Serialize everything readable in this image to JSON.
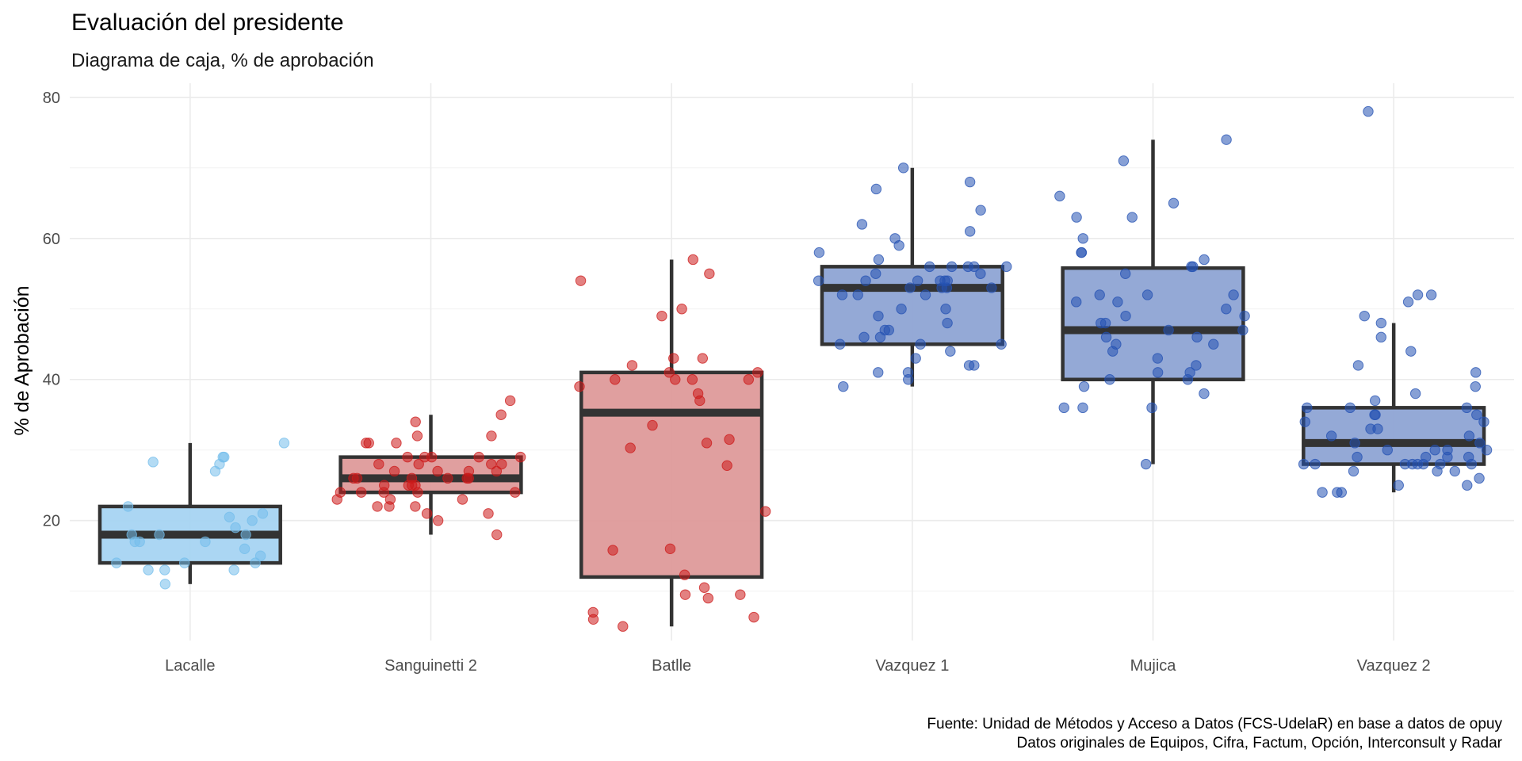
{
  "chart_data": {
    "type": "box",
    "title": "Evaluación del presidente",
    "subtitle": "Diagrama de caja, % de aprobación",
    "xlabel": "",
    "ylabel": "% de Aprobación",
    "ylim": [
      3,
      82
    ],
    "yticks": [
      20,
      40,
      60,
      80
    ],
    "grid": true,
    "legend": "none",
    "caption": [
      "Fuente: Unidad de Métodos y Acceso a Datos (FCS-UdelaR) en base a datos de opuy",
      "Datos originales de Equipos, Cifra, Factum, Opción, Interconsult y Radar"
    ],
    "categories": [
      "Lacalle",
      "Sanguinetti 2",
      "Batlle",
      "Vazquez 1",
      "Mujica",
      "Vazquez 2"
    ],
    "boxes": [
      {
        "category": "Lacalle",
        "whisker_low": 11,
        "q1": 14,
        "median": 18,
        "q3": 22,
        "whisker_high": 31,
        "fill": "#a6d4f2",
        "point_color": "#74bdeb"
      },
      {
        "category": "Sanguinetti 2",
        "whisker_low": 18,
        "q1": 24,
        "median": 26,
        "q3": 29,
        "whisker_high": 35,
        "fill": "#de9a9a",
        "point_color": "#cc1a1a"
      },
      {
        "category": "Batlle",
        "whisker_low": 5,
        "q1": 12,
        "median": 35.3,
        "q3": 41,
        "whisker_high": 57,
        "fill": "#de9a9a",
        "point_color": "#cc1a1a"
      },
      {
        "category": "Vazquez 1",
        "whisker_low": 39,
        "q1": 45,
        "median": 53,
        "q3": 56,
        "whisker_high": 70,
        "fill": "#8ea4d4",
        "point_color": "#2452b3"
      },
      {
        "category": "Mujica",
        "whisker_low": 28,
        "q1": 40,
        "median": 47,
        "q3": 55.8,
        "whisker_high": 74,
        "fill": "#8ea4d4",
        "point_color": "#2452b3"
      },
      {
        "category": "Vazquez 2",
        "whisker_low": 24,
        "q1": 28,
        "median": 31,
        "q3": 36,
        "whisker_high": 48,
        "fill": "#8ea4d4",
        "point_color": "#2452b3"
      }
    ],
    "series": [
      {
        "category": "Lacalle",
        "values": [
          28,
          28.3,
          27,
          31,
          29,
          29,
          22,
          21,
          20.5,
          20,
          19,
          18,
          18,
          18,
          17,
          17,
          17,
          16,
          15,
          14,
          14,
          14,
          13,
          13,
          13,
          11
        ]
      },
      {
        "category": "Sanguinetti 2",
        "values": [
          37,
          35,
          34,
          32,
          32,
          31,
          31,
          31,
          29,
          29,
          29,
          29,
          29,
          28,
          28,
          28,
          28,
          27,
          27,
          27,
          27,
          26,
          26,
          26,
          26,
          26,
          26,
          25,
          25,
          25,
          25,
          24,
          24,
          24,
          24,
          24,
          23,
          23,
          23,
          22,
          22,
          22,
          21,
          21,
          20,
          18
        ]
      },
      {
        "category": "Batlle",
        "values": [
          57,
          55,
          54,
          50,
          49,
          43,
          43,
          42,
          41,
          41,
          40,
          40,
          40,
          40,
          39,
          38,
          37,
          33.5,
          31.5,
          31,
          30.3,
          27.8,
          21.3,
          16,
          15.8,
          12.3,
          10.5,
          9.5,
          9.5,
          9,
          7,
          6.3,
          6,
          5
        ]
      },
      {
        "category": "Vazquez 1",
        "values": [
          70,
          68,
          67,
          64,
          62,
          61,
          60,
          59,
          58,
          57,
          56,
          56,
          56,
          56,
          56,
          55,
          55,
          54,
          54,
          54,
          54,
          54,
          54,
          53,
          53,
          53,
          53,
          52,
          52,
          52,
          50,
          50,
          49,
          48,
          47,
          47,
          46,
          46,
          45,
          45,
          45,
          44,
          43,
          42,
          42,
          41,
          41,
          40,
          39
        ]
      },
      {
        "category": "Mujica",
        "values": [
          74,
          71,
          66,
          65,
          63,
          63,
          60,
          58,
          58,
          57,
          56,
          56,
          55,
          52,
          52,
          52,
          51,
          51,
          50,
          49,
          49,
          48,
          48,
          47,
          47,
          46,
          46,
          45,
          45,
          44,
          43,
          42,
          41,
          41,
          40,
          40,
          39,
          38,
          36,
          36,
          36,
          28
        ]
      },
      {
        "category": "Vazquez 2",
        "values": [
          78,
          52,
          52,
          51,
          49,
          48,
          46,
          44,
          42,
          41,
          39,
          38,
          37,
          36,
          36,
          36,
          35,
          35,
          35,
          34,
          34,
          33,
          33,
          32,
          32,
          31,
          31,
          30,
          30,
          30,
          30,
          29,
          29,
          29,
          29,
          28,
          28,
          28,
          28,
          28,
          28,
          28,
          28,
          27,
          27,
          27,
          26,
          25,
          25,
          24,
          24,
          24
        ]
      }
    ]
  }
}
